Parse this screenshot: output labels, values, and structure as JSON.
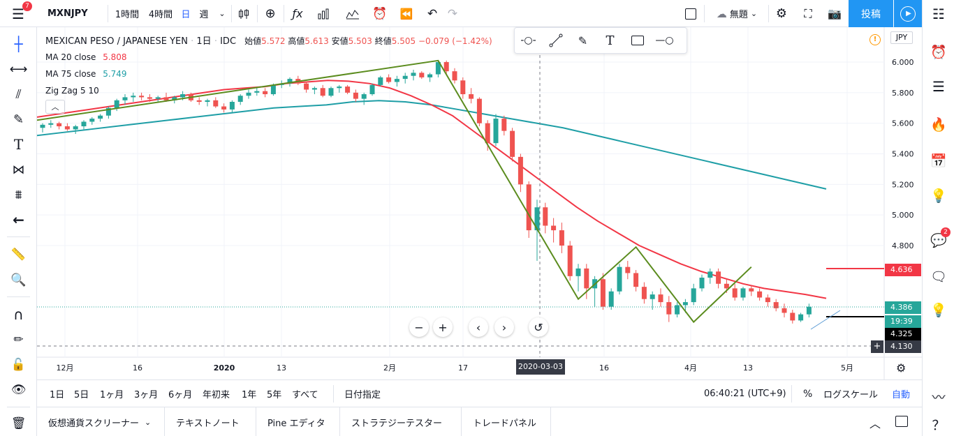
{
  "top_bar": {
    "notification_count": "7",
    "symbol": "MXNJPY",
    "intervals": [
      "1時間",
      "4時間",
      "日",
      "週"
    ],
    "active_interval": "日",
    "cloud_label": "無題",
    "publish_label": "投稿"
  },
  "legend": {
    "title": "MEXICAN PESO / JAPANESE YEN",
    "interval": "1日",
    "source": "IDC",
    "open_label": "始値",
    "open_value": "5.572",
    "high_label": "高値",
    "high_value": "5.613",
    "low_label": "安値",
    "low_value": "5.503",
    "close_label": "終値",
    "close_value": "5.505",
    "change": "−0.079 (−1.42%)",
    "ma20_label": "MA 20 close",
    "ma20_value": "5.808",
    "ma75_label": "MA 75 close",
    "ma75_value": "5.749",
    "zigzag_label": "Zig Zag 5 10"
  },
  "price_axis": {
    "currency": "JPY",
    "ticks": [
      "6.000",
      "5.800",
      "5.600",
      "5.400",
      "5.200",
      "5.000",
      "4.800"
    ],
    "tags": {
      "ma20": "4.636",
      "last": "4.386",
      "countdown": "19:39",
      "crosshair_line": "4.325",
      "crosshair": "4.130"
    }
  },
  "time_axis": {
    "ticks": [
      "12月",
      "16",
      "2020",
      "13",
      "2月",
      "17",
      "16",
      "4月",
      "13",
      "5月"
    ],
    "crosshair_date": "2020-03-03"
  },
  "range_bar": {
    "ranges": [
      "1日",
      "5日",
      "1ヶ月",
      "3ヶ月",
      "6ヶ月",
      "年初来",
      "1年",
      "5年",
      "すべて"
    ],
    "goto_date": "日付指定",
    "clock": "06:40:21 (UTC+9)",
    "percent": "%",
    "log_scale": "ログスケール",
    "auto": "自動"
  },
  "bottom_tabs": [
    "仮想通貨スクリーナー",
    "テキストノート",
    "Pine エディタ",
    "ストラテジーテスター",
    "トレードパネル"
  ],
  "right_bar": {
    "chat_badge": "2"
  },
  "colors": {
    "up": "#26a69a",
    "down": "#ef5350",
    "ma20": "#f23645",
    "ma75": "#1e9ea6",
    "zigzag": "#5b8c1e",
    "accent": "#2196f3"
  },
  "chart_data": {
    "type": "candlestick",
    "ylim": [
      4.05,
      6.1
    ],
    "candles": [
      [
        5.57,
        5.6,
        5.54,
        5.59
      ],
      [
        5.59,
        5.62,
        5.57,
        5.6
      ],
      [
        5.6,
        5.61,
        5.56,
        5.58
      ],
      [
        5.58,
        5.6,
        5.55,
        5.56
      ],
      [
        5.56,
        5.59,
        5.53,
        5.58
      ],
      [
        5.58,
        5.62,
        5.56,
        5.61
      ],
      [
        5.61,
        5.64,
        5.59,
        5.63
      ],
      [
        5.63,
        5.66,
        5.61,
        5.65
      ],
      [
        5.65,
        5.71,
        5.63,
        5.7
      ],
      [
        5.7,
        5.76,
        5.68,
        5.75
      ],
      [
        5.75,
        5.79,
        5.72,
        5.77
      ],
      [
        5.77,
        5.8,
        5.74,
        5.78
      ],
      [
        5.78,
        5.8,
        5.75,
        5.77
      ],
      [
        5.77,
        5.79,
        5.74,
        5.76
      ],
      [
        5.76,
        5.78,
        5.74,
        5.77
      ],
      [
        5.77,
        5.8,
        5.74,
        5.75
      ],
      [
        5.75,
        5.78,
        5.73,
        5.77
      ],
      [
        5.77,
        5.81,
        5.75,
        5.79
      ],
      [
        5.79,
        5.8,
        5.74,
        5.75
      ],
      [
        5.75,
        5.77,
        5.72,
        5.74
      ],
      [
        5.74,
        5.76,
        5.71,
        5.75
      ],
      [
        5.75,
        5.77,
        5.7,
        5.71
      ],
      [
        5.71,
        5.73,
        5.67,
        5.69
      ],
      [
        5.69,
        5.75,
        5.67,
        5.74
      ],
      [
        5.74,
        5.79,
        5.72,
        5.78
      ],
      [
        5.78,
        5.82,
        5.76,
        5.8
      ],
      [
        5.8,
        5.83,
        5.78,
        5.81
      ],
      [
        5.81,
        5.83,
        5.77,
        5.79
      ],
      [
        5.79,
        5.86,
        5.78,
        5.85
      ],
      [
        5.85,
        5.88,
        5.83,
        5.86
      ],
      [
        5.86,
        5.9,
        5.84,
        5.89
      ],
      [
        5.89,
        5.91,
        5.85,
        5.86
      ],
      [
        5.86,
        5.87,
        5.8,
        5.82
      ],
      [
        5.82,
        5.84,
        5.79,
        5.83
      ],
      [
        5.83,
        5.85,
        5.77,
        5.78
      ],
      [
        5.78,
        5.84,
        5.77,
        5.83
      ],
      [
        5.83,
        5.85,
        5.8,
        5.84
      ],
      [
        5.84,
        5.85,
        5.79,
        5.8
      ],
      [
        5.8,
        5.82,
        5.74,
        5.76
      ],
      [
        5.76,
        5.8,
        5.72,
        5.79
      ],
      [
        5.79,
        5.86,
        5.78,
        5.85
      ],
      [
        5.85,
        5.91,
        5.84,
        5.9
      ],
      [
        5.9,
        5.92,
        5.86,
        5.87
      ],
      [
        5.87,
        5.91,
        5.84,
        5.89
      ],
      [
        5.89,
        5.93,
        5.86,
        5.91
      ],
      [
        5.91,
        5.95,
        5.88,
        5.93
      ],
      [
        5.93,
        5.94,
        5.89,
        5.9
      ],
      [
        5.9,
        5.93,
        5.87,
        5.92
      ],
      [
        5.92,
        6.01,
        5.9,
        6.0
      ],
      [
        6.0,
        6.01,
        5.92,
        5.94
      ],
      [
        5.94,
        5.96,
        5.86,
        5.88
      ],
      [
        5.88,
        5.9,
        5.76,
        5.79
      ],
      [
        5.79,
        5.83,
        5.73,
        5.76
      ],
      [
        5.76,
        5.77,
        5.58,
        5.6
      ],
      [
        5.6,
        5.62,
        5.42,
        5.47
      ],
      [
        5.47,
        5.66,
        5.45,
        5.63
      ],
      [
        5.63,
        5.65,
        5.52,
        5.55
      ],
      [
        5.55,
        5.57,
        5.35,
        5.38
      ],
      [
        5.38,
        5.4,
        5.15,
        5.2
      ],
      [
        5.2,
        5.22,
        4.85,
        4.9
      ],
      [
        4.9,
        5.1,
        4.7,
        5.05
      ],
      [
        5.05,
        5.08,
        4.88,
        4.93
      ],
      [
        4.93,
        4.98,
        4.82,
        4.9
      ],
      [
        4.9,
        4.95,
        4.75,
        4.8
      ],
      [
        4.8,
        4.83,
        4.57,
        4.6
      ],
      [
        4.6,
        4.68,
        4.5,
        4.65
      ],
      [
        4.65,
        4.68,
        4.45,
        4.52
      ],
      [
        4.52,
        4.6,
        4.4,
        4.58
      ],
      [
        4.58,
        4.62,
        4.38,
        4.4
      ],
      [
        4.4,
        4.52,
        4.38,
        4.5
      ],
      [
        4.5,
        4.68,
        4.48,
        4.66
      ],
      [
        4.66,
        4.7,
        4.58,
        4.62
      ],
      [
        4.62,
        4.64,
        4.5,
        4.53
      ],
      [
        4.53,
        4.56,
        4.42,
        4.45
      ],
      [
        4.45,
        4.5,
        4.38,
        4.48
      ],
      [
        4.48,
        4.52,
        4.4,
        4.43
      ],
      [
        4.43,
        4.47,
        4.3,
        4.35
      ],
      [
        4.35,
        4.43,
        4.33,
        4.41
      ],
      [
        4.41,
        4.45,
        4.36,
        4.43
      ],
      [
        4.43,
        4.55,
        4.41,
        4.52
      ],
      [
        4.52,
        4.61,
        4.5,
        4.59
      ],
      [
        4.59,
        4.65,
        4.55,
        4.63
      ],
      [
        4.63,
        4.65,
        4.52,
        4.55
      ],
      [
        4.55,
        4.58,
        4.49,
        4.52
      ],
      [
        4.52,
        4.55,
        4.44,
        4.46
      ],
      [
        4.46,
        4.53,
        4.44,
        4.52
      ],
      [
        4.52,
        4.54,
        4.47,
        4.5
      ],
      [
        4.5,
        4.52,
        4.44,
        4.46
      ],
      [
        4.46,
        4.48,
        4.4,
        4.43
      ],
      [
        4.43,
        4.45,
        4.37,
        4.39
      ],
      [
        4.39,
        4.42,
        4.33,
        4.36
      ],
      [
        4.36,
        4.38,
        4.29,
        4.31
      ],
      [
        4.31,
        4.36,
        4.3,
        4.35
      ],
      [
        4.35,
        4.42,
        4.33,
        4.4
      ]
    ],
    "ma20": [
      5.64,
      5.66,
      5.68,
      5.7,
      5.72,
      5.74,
      5.76,
      5.78,
      5.8,
      5.82,
      5.83,
      5.84,
      5.86,
      5.87,
      5.88,
      5.875,
      5.86,
      5.83,
      5.78,
      5.72,
      5.65,
      5.55,
      5.45,
      5.35,
      5.25,
      5.15,
      5.05,
      4.96,
      4.88,
      4.8,
      4.74,
      4.68,
      4.63,
      4.59,
      4.55,
      4.52,
      4.5,
      4.48,
      4.455
    ],
    "ma75": [
      5.52,
      5.54,
      5.56,
      5.58,
      5.6,
      5.62,
      5.64,
      5.66,
      5.68,
      5.7,
      5.71,
      5.72,
      5.74,
      5.748,
      5.74,
      5.72,
      5.69,
      5.66,
      5.63,
      5.6,
      5.57,
      5.53,
      5.49,
      5.45,
      5.41,
      5.37,
      5.33,
      5.29,
      5.25,
      5.21,
      5.17
    ],
    "zigzag": [
      [
        0,
        5.62
      ],
      [
        48,
        6.01
      ],
      [
        65,
        4.45
      ],
      [
        72,
        4.79
      ],
      [
        79,
        4.3
      ],
      [
        86,
        4.66
      ]
    ]
  }
}
